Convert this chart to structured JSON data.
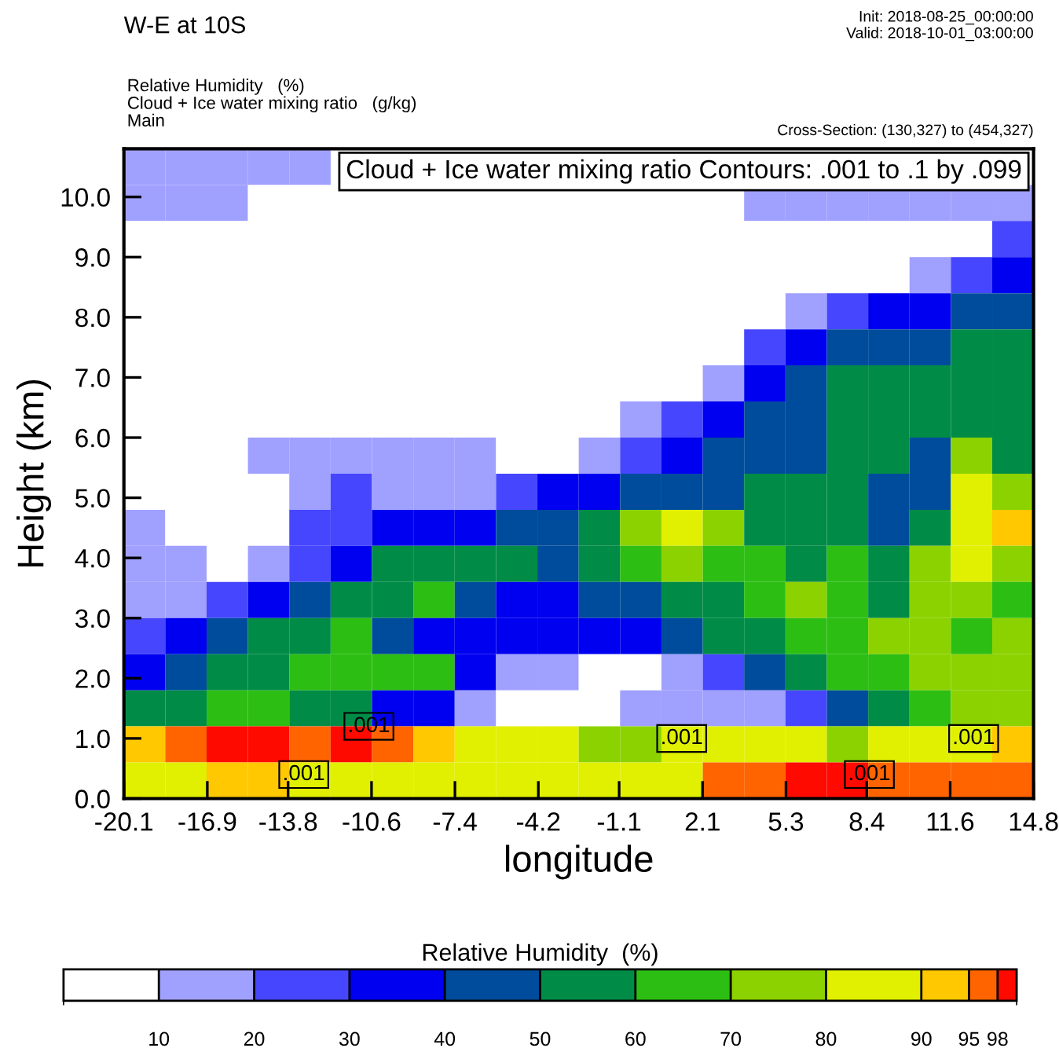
{
  "chart_data": {
    "type": "heatmap",
    "title": "W-E at 10S",
    "subtitle": "Relative Humidity   (%)\nCloud + Ice water mixing ratio   (g/kg)\nMain",
    "xlabel": "longitude",
    "ylabel": "Height (km)",
    "clabel": "Relative Humidity  (%)",
    "annotations": [
      "Init: 2018-08-25_00:00:00\nValid: 2018-10-01_03:00:00",
      "Cross-Section: (130,327) to (454,327)",
      "Cloud + Ice water mixing ratio Contours: .001 to .1 by .099",
      {
        "text": ".001",
        "x": -10.7,
        "y": 1.2
      },
      {
        "text": ".001",
        "x": -13.2,
        "y": 0.4
      },
      {
        "text": ".001",
        "x": 1.3,
        "y": 1.0
      },
      {
        "text": ".001",
        "x": 8.5,
        "y": 0.4
      },
      {
        "text": ".001",
        "x": 12.5,
        "y": 1.0
      }
    ],
    "xlim": [
      -20.1,
      14.8
    ],
    "xticks": [
      -20.1,
      -16.9,
      -13.8,
      -10.6,
      -7.4,
      -4.2,
      -1.1,
      2.1,
      5.3,
      8.4,
      11.6,
      14.8
    ],
    "ylim": [
      0,
      10.8
    ],
    "yticks": [
      {
        "value": 0,
        "label": "0.0"
      },
      {
        "value": 1,
        "label": "1.0"
      },
      {
        "value": 2,
        "label": "2.0"
      },
      {
        "value": 3,
        "label": "3.0"
      },
      {
        "value": 4,
        "label": "4.0"
      },
      {
        "value": 5,
        "label": "5.0"
      },
      {
        "value": 6,
        "label": "6.0"
      },
      {
        "value": 7,
        "label": "7.0"
      },
      {
        "value": 8,
        "label": "8.0"
      },
      {
        "value": 9,
        "label": "9.0"
      },
      {
        "value": 10,
        "label": "10.0"
      }
    ],
    "clim": [
      0,
      100
    ],
    "cticks": [
      10,
      20,
      30,
      40,
      50,
      60,
      70,
      80,
      90,
      95,
      98
    ],
    "colors": [
      "#ffffff",
      "#a0a0ff",
      "#4646ff",
      "#0000f0",
      "#004c9c",
      "#008c46",
      "#2dbe14",
      "#8cd200",
      "#e1f000",
      "#ffc800",
      "#ff6400",
      "#ff0a00"
    ],
    "grid": false,
    "cells": [
      [
        15,
        15,
        15,
        15,
        15,
        null,
        null,
        null,
        null,
        null,
        null,
        null,
        null,
        null,
        null,
        null,
        null,
        null,
        null,
        null,
        null,
        null
      ],
      [
        15,
        15,
        15,
        5,
        5,
        5,
        5,
        5,
        5,
        5,
        5,
        5,
        5,
        5,
        5,
        15,
        15,
        15,
        15,
        15,
        15,
        15
      ],
      [
        5,
        5,
        5,
        5,
        5,
        5,
        5,
        5,
        5,
        5,
        5,
        5,
        5,
        5,
        5,
        5,
        5,
        5,
        5,
        5,
        5,
        25
      ],
      [
        5,
        5,
        5,
        5,
        5,
        5,
        5,
        5,
        5,
        5,
        5,
        5,
        5,
        5,
        5,
        5,
        5,
        5,
        5,
        15,
        25,
        35
      ],
      [
        5,
        5,
        5,
        5,
        5,
        5,
        5,
        5,
        5,
        5,
        5,
        5,
        5,
        5,
        5,
        5,
        15,
        25,
        35,
        35,
        45,
        45
      ],
      [
        5,
        5,
        5,
        5,
        5,
        5,
        5,
        5,
        5,
        5,
        5,
        5,
        5,
        5,
        5,
        25,
        35,
        45,
        45,
        45,
        55,
        55
      ],
      [
        5,
        5,
        5,
        5,
        5,
        5,
        5,
        5,
        5,
        5,
        5,
        5,
        5,
        5,
        15,
        35,
        45,
        55,
        55,
        55,
        55,
        55
      ],
      [
        5,
        5,
        5,
        5,
        5,
        5,
        5,
        5,
        5,
        5,
        5,
        5,
        15,
        25,
        35,
        45,
        45,
        55,
        55,
        55,
        55,
        55
      ],
      [
        5,
        5,
        5,
        15,
        15,
        15,
        15,
        15,
        15,
        5,
        5,
        15,
        25,
        35,
        45,
        45,
        45,
        55,
        55,
        45,
        75,
        55
      ],
      [
        5,
        5,
        5,
        5,
        15,
        25,
        15,
        15,
        15,
        25,
        35,
        35,
        45,
        45,
        45,
        55,
        55,
        55,
        45,
        45,
        85,
        75
      ],
      [
        15,
        5,
        5,
        5,
        25,
        25,
        35,
        35,
        35,
        45,
        45,
        55,
        75,
        85,
        75,
        55,
        55,
        55,
        45,
        55,
        85,
        92
      ],
      [
        15,
        15,
        5,
        15,
        25,
        35,
        55,
        55,
        55,
        55,
        45,
        55,
        65,
        75,
        65,
        65,
        55,
        65,
        55,
        75,
        85,
        75
      ],
      [
        15,
        15,
        25,
        35,
        45,
        55,
        55,
        65,
        45,
        35,
        35,
        45,
        45,
        55,
        55,
        65,
        75,
        65,
        55,
        75,
        75,
        65
      ],
      [
        25,
        35,
        45,
        55,
        55,
        65,
        45,
        35,
        35,
        35,
        35,
        35,
        35,
        45,
        55,
        55,
        65,
        65,
        75,
        75,
        65,
        75
      ],
      [
        35,
        45,
        55,
        55,
        65,
        65,
        65,
        65,
        35,
        15,
        15,
        5,
        5,
        15,
        25,
        45,
        55,
        65,
        65,
        75,
        75,
        75
      ],
      [
        55,
        55,
        65,
        65,
        55,
        55,
        35,
        35,
        15,
        5,
        5,
        5,
        15,
        15,
        15,
        15,
        25,
        45,
        55,
        65,
        75,
        75
      ],
      [
        92,
        96,
        99,
        99,
        96,
        99,
        96,
        92,
        85,
        85,
        85,
        75,
        75,
        85,
        85,
        85,
        85,
        75,
        85,
        85,
        85,
        92
      ],
      [
        85,
        85,
        92,
        92,
        85,
        85,
        85,
        85,
        85,
        85,
        85,
        85,
        85,
        85,
        96,
        96,
        99,
        99,
        96,
        96,
        96,
        96
      ]
    ]
  }
}
